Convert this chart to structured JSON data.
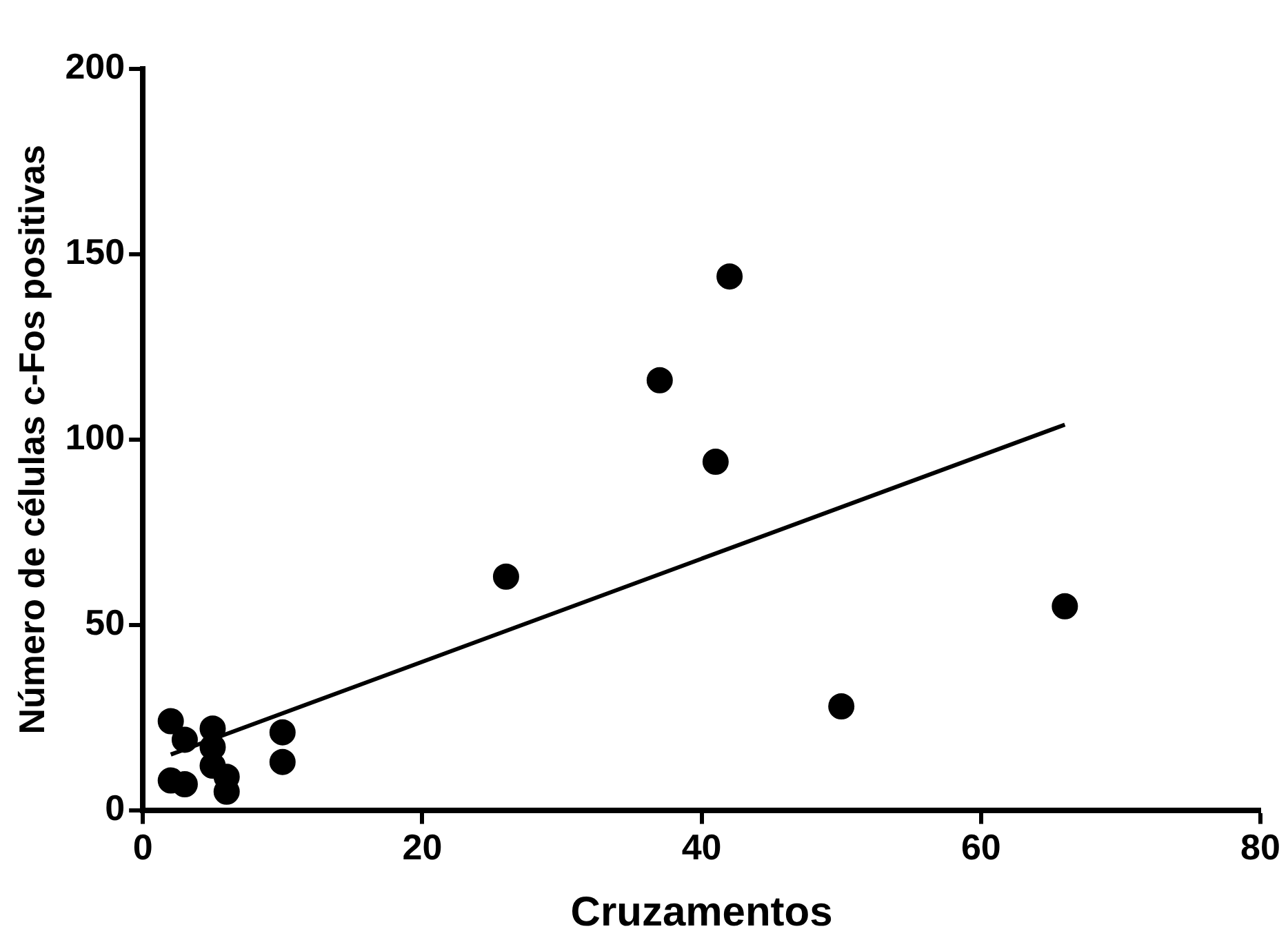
{
  "chart_data": {
    "type": "scatter",
    "xlabel": "Cruzamentos",
    "ylabel": "Número de células c-Fos positivas",
    "xlim": [
      0,
      80
    ],
    "xticks": [
      0,
      20,
      40,
      60,
      80
    ],
    "ylim": [
      0,
      200
    ],
    "yticks": [
      0,
      50,
      100,
      150,
      200
    ],
    "grid": false,
    "legend": false,
    "series": [
      {
        "marker": "circle",
        "color": "#000000",
        "x": [
          2,
          3,
          2,
          3,
          5,
          5,
          5,
          6,
          6,
          10,
          10,
          26,
          37,
          41,
          42,
          50,
          66
        ],
        "values": [
          24,
          19,
          8,
          7,
          22,
          17,
          12,
          9,
          5,
          21,
          13,
          63,
          116,
          94,
          144,
          28,
          55
        ]
      },
      {
        "type": "line",
        "color": "#000000",
        "x": [
          2,
          66
        ],
        "values": [
          15,
          104
        ]
      }
    ]
  }
}
